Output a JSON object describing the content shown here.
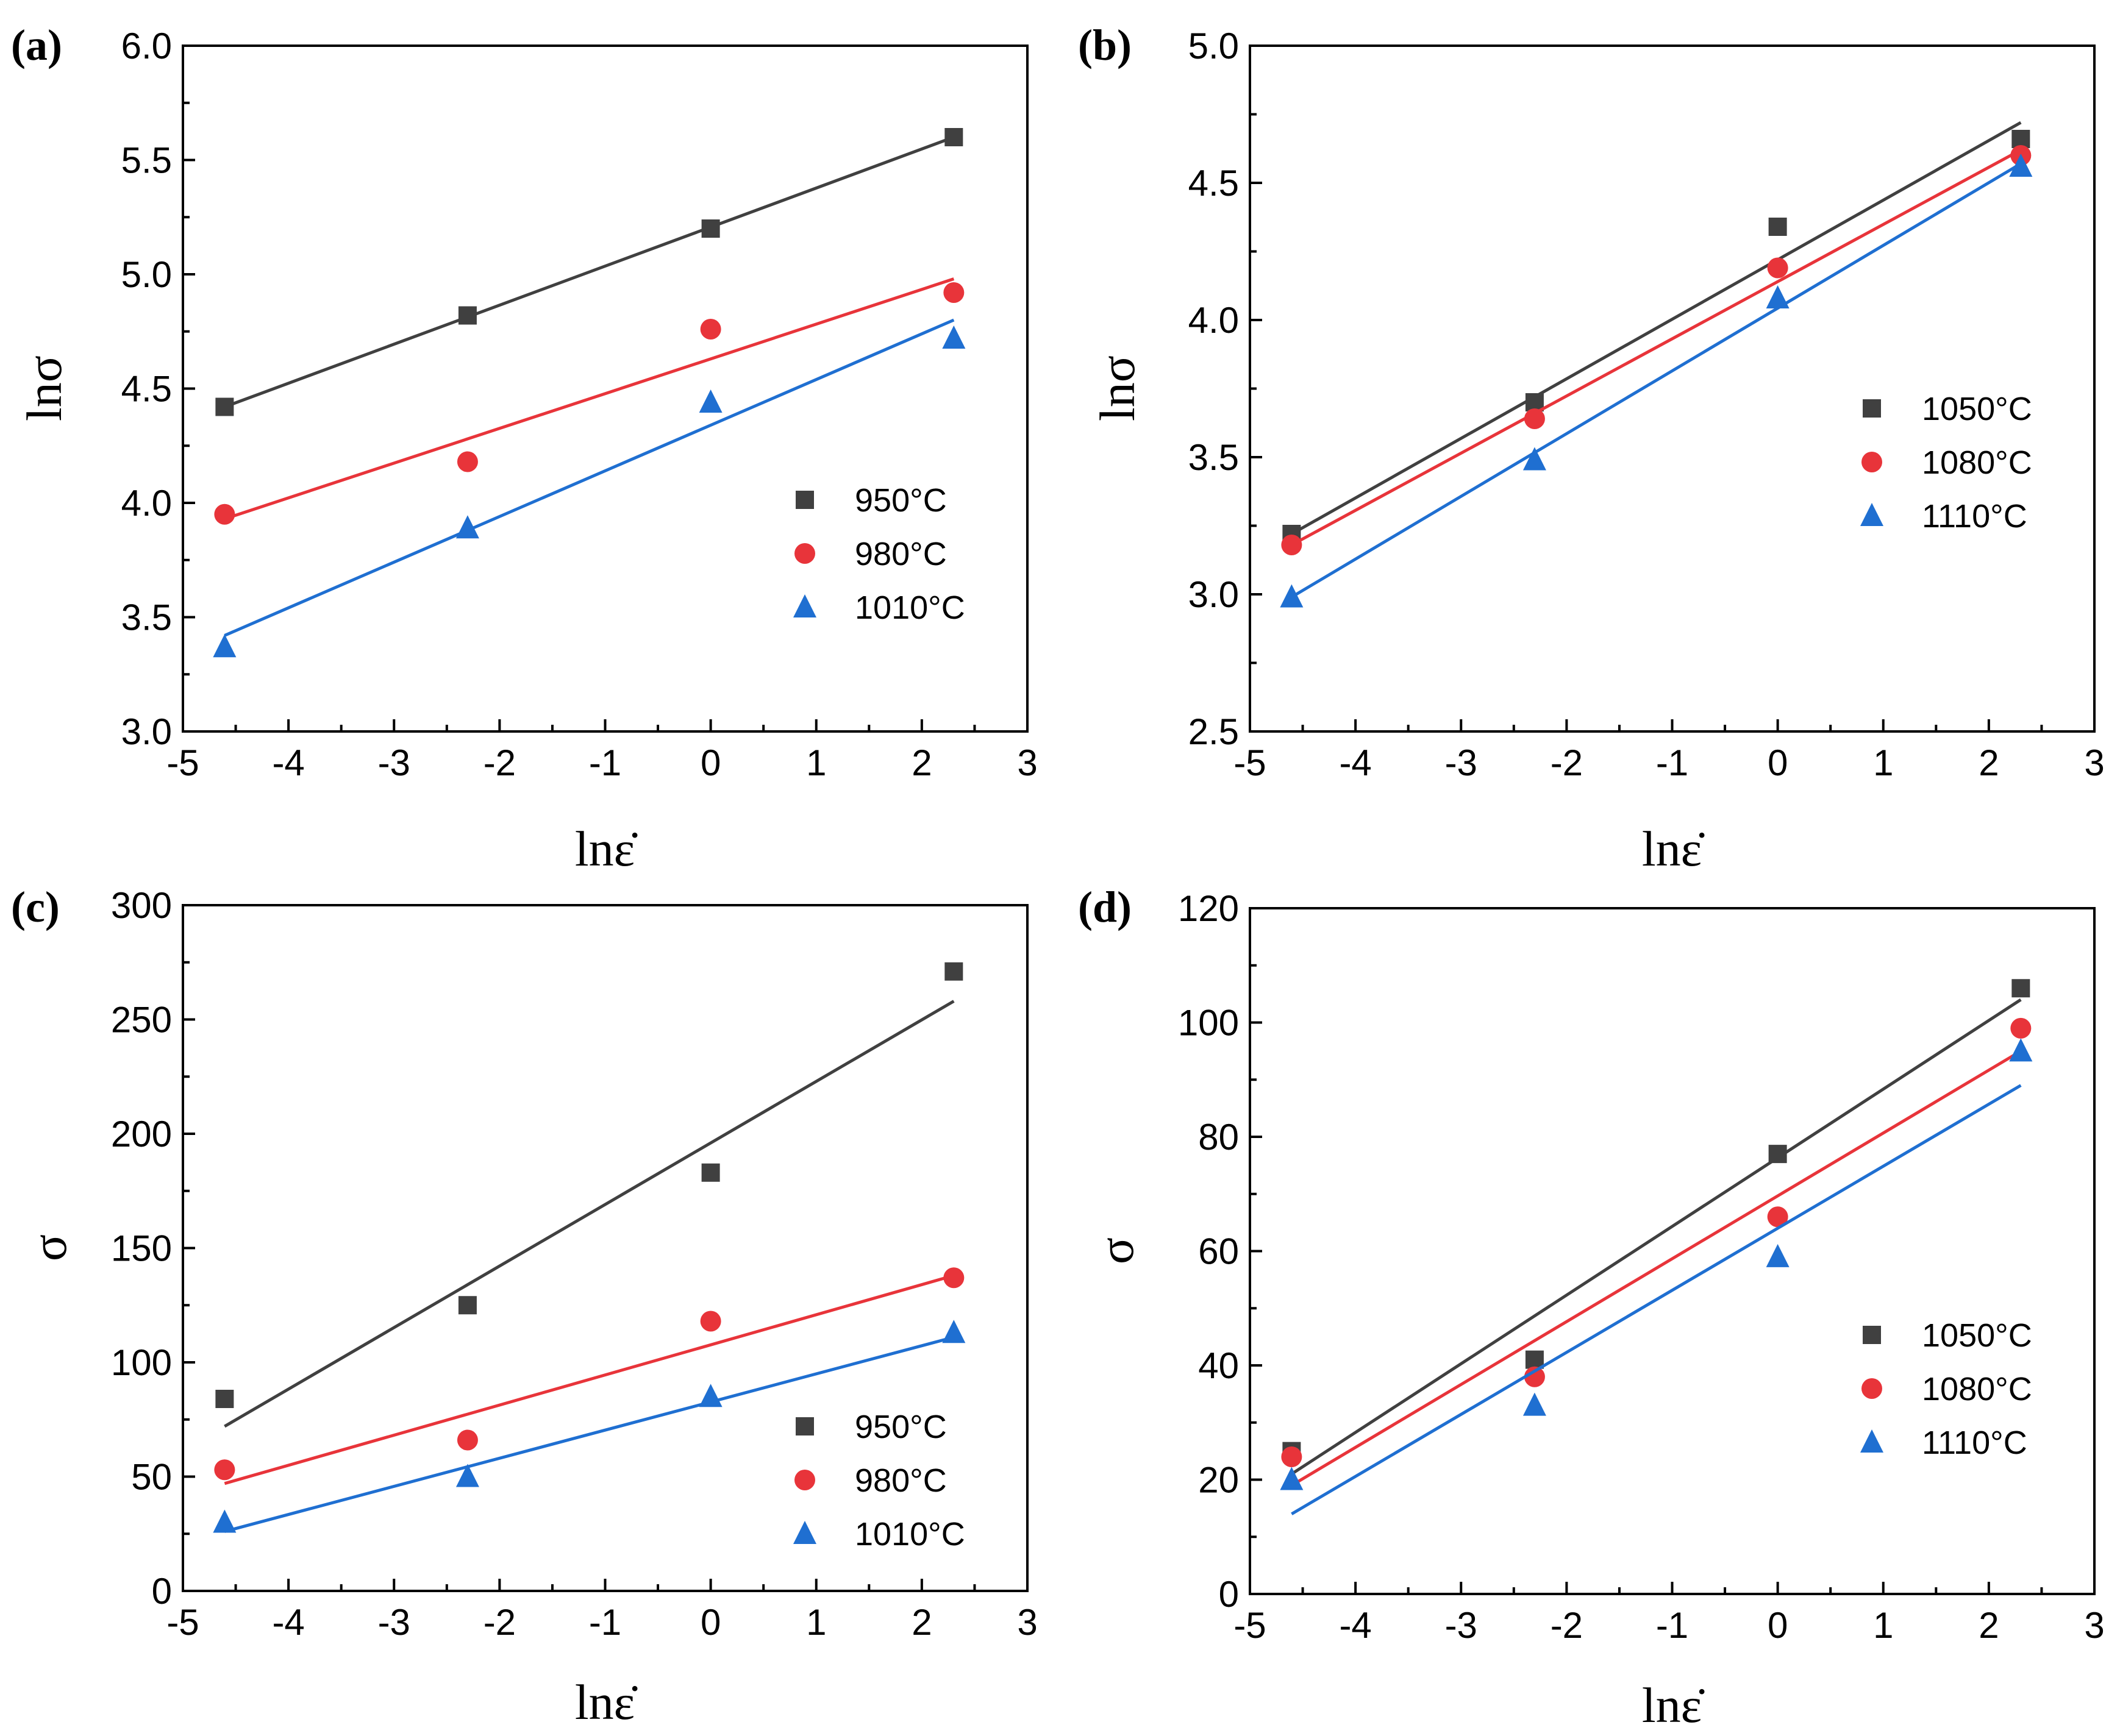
{
  "colors": {
    "s1": "#404040",
    "s2": "#e8343a",
    "s3": "#1f6fd1"
  },
  "chart_data": [
    {
      "type": "scatter",
      "panel_label": "(a)",
      "xlabel": "lnε̇",
      "ylabel": "lnσ",
      "xlim": [
        -5,
        3
      ],
      "ylim": [
        3.0,
        6.0
      ],
      "xticks": [
        "-5",
        "-4",
        "-3",
        "-2",
        "-1",
        "0",
        "1",
        "2",
        "3"
      ],
      "yticks": [
        "3.0",
        "3.5",
        "4.0",
        "4.5",
        "5.0",
        "5.5",
        "6.0"
      ],
      "legend_position": "lower-right",
      "series": [
        {
          "name": "950°C",
          "marker": "square",
          "color_key": "s1",
          "x": [
            -4.605,
            -2.303,
            0,
            2.303
          ],
          "y": [
            4.42,
            4.82,
            5.2,
            5.6
          ],
          "fit": [
            [
              -4.605,
              4.42
            ],
            [
              2.303,
              5.6
            ]
          ]
        },
        {
          "name": "980°C",
          "marker": "circle",
          "color_key": "s2",
          "x": [
            -4.605,
            -2.303,
            0,
            2.303
          ],
          "y": [
            3.95,
            4.18,
            4.76,
            4.92
          ],
          "fit": [
            [
              -4.605,
              3.93
            ],
            [
              2.303,
              4.98
            ]
          ]
        },
        {
          "name": "1010°C",
          "marker": "triangle",
          "color_key": "s3",
          "x": [
            -4.605,
            -2.303,
            0,
            2.303
          ],
          "y": [
            3.37,
            3.89,
            4.44,
            4.72
          ],
          "fit": [
            [
              -4.605,
              3.42
            ],
            [
              2.303,
              4.8
            ]
          ]
        }
      ]
    },
    {
      "type": "scatter",
      "panel_label": "(b)",
      "xlabel": "lnε̇",
      "ylabel": "lnσ",
      "xlim": [
        -5,
        3
      ],
      "ylim": [
        2.5,
        5.0
      ],
      "xticks": [
        "-5",
        "-4",
        "-3",
        "-2",
        "-1",
        "0",
        "1",
        "2",
        "3"
      ],
      "yticks": [
        "2.5",
        "3.0",
        "3.5",
        "4.0",
        "4.5",
        "5.0"
      ],
      "legend_position": "middle-right",
      "series": [
        {
          "name": "1050°C",
          "marker": "square",
          "color_key": "s1",
          "x": [
            -4.605,
            -2.303,
            0,
            2.303
          ],
          "y": [
            3.22,
            3.7,
            4.34,
            4.66
          ],
          "fit": [
            [
              -4.605,
              3.22
            ],
            [
              2.303,
              4.72
            ]
          ]
        },
        {
          "name": "1080°C",
          "marker": "circle",
          "color_key": "s2",
          "x": [
            -4.605,
            -2.303,
            0,
            2.303
          ],
          "y": [
            3.18,
            3.64,
            4.19,
            4.6
          ],
          "fit": [
            [
              -4.605,
              3.18
            ],
            [
              2.303,
              4.62
            ]
          ]
        },
        {
          "name": "1110°C",
          "marker": "triangle",
          "color_key": "s3",
          "x": [
            -4.605,
            -2.303,
            0,
            2.303
          ],
          "y": [
            2.99,
            3.49,
            4.08,
            4.56
          ],
          "fit": [
            [
              -4.605,
              2.99
            ],
            [
              2.303,
              4.57
            ]
          ]
        }
      ]
    },
    {
      "type": "scatter",
      "panel_label": "(c)",
      "xlabel": "lnε̇",
      "ylabel": "σ",
      "xlim": [
        -5,
        3
      ],
      "ylim": [
        0,
        300
      ],
      "xticks": [
        "-5",
        "-4",
        "-3",
        "-2",
        "-1",
        "0",
        "1",
        "2",
        "3"
      ],
      "yticks": [
        "0",
        "50",
        "100",
        "150",
        "200",
        "250",
        "300"
      ],
      "legend_position": "lower-right",
      "series": [
        {
          "name": "950°C",
          "marker": "square",
          "color_key": "s1",
          "x": [
            -4.605,
            -2.303,
            0,
            2.303
          ],
          "y": [
            84,
            125,
            183,
            271
          ],
          "fit": [
            [
              -4.605,
              72
            ],
            [
              2.303,
              258
            ]
          ]
        },
        {
          "name": "980°C",
          "marker": "circle",
          "color_key": "s2",
          "x": [
            -4.605,
            -2.303,
            0,
            2.303
          ],
          "y": [
            53,
            66,
            118,
            137
          ],
          "fit": [
            [
              -4.605,
              47
            ],
            [
              2.303,
              138
            ]
          ]
        },
        {
          "name": "1010°C",
          "marker": "triangle",
          "color_key": "s3",
          "x": [
            -4.605,
            -2.303,
            0,
            2.303
          ],
          "y": [
            30,
            50,
            85,
            113
          ],
          "fit": [
            [
              -4.605,
              26
            ],
            [
              2.303,
              111
            ]
          ]
        }
      ]
    },
    {
      "type": "scatter",
      "panel_label": "(d)",
      "xlabel": "lnε̇",
      "ylabel": "σ",
      "xlim": [
        -5,
        3
      ],
      "ylim": [
        0,
        120
      ],
      "xticks": [
        "-5",
        "-4",
        "-3",
        "-2",
        "-1",
        "0",
        "1",
        "2",
        "3"
      ],
      "yticks": [
        "0",
        "20",
        "40",
        "60",
        "80",
        "100",
        "120"
      ],
      "legend_position": "lower-right",
      "series": [
        {
          "name": "1050°C",
          "marker": "square",
          "color_key": "s1",
          "x": [
            -4.605,
            -2.303,
            0,
            2.303
          ],
          "y": [
            25,
            41,
            77,
            106
          ],
          "fit": [
            [
              -4.605,
              21
            ],
            [
              2.303,
              104
            ]
          ]
        },
        {
          "name": "1080°C",
          "marker": "circle",
          "color_key": "s2",
          "x": [
            -4.605,
            -2.303,
            0,
            2.303
          ],
          "y": [
            24,
            38,
            66,
            99
          ],
          "fit": [
            [
              -4.605,
              19
            ],
            [
              2.303,
              95
            ]
          ]
        },
        {
          "name": "1110°C",
          "marker": "triangle",
          "color_key": "s3",
          "x": [
            -4.605,
            -2.303,
            0,
            2.303
          ],
          "y": [
            20,
            33,
            59,
            95
          ],
          "fit": [
            [
              -4.605,
              14
            ],
            [
              2.303,
              89
            ]
          ]
        }
      ]
    }
  ]
}
